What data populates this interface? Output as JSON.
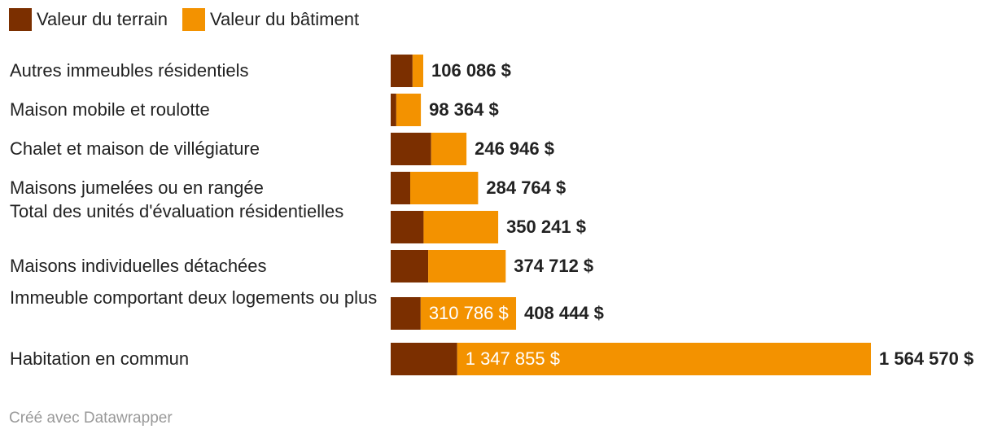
{
  "legend": [
    {
      "label": "Valeur du terrain",
      "color": "#7b2f00"
    },
    {
      "label": "Valeur du bâtiment",
      "color": "#f39200"
    }
  ],
  "chart_data": {
    "type": "bar",
    "orientation": "horizontal",
    "stacked": true,
    "categories": [
      "Autres immeubles résidentiels",
      "Maison mobile et roulotte",
      "Chalet et maison de villégiature",
      "Maisons jumelées ou en rangée",
      "Total des unités d'évaluation résidentielles",
      "Maisons individuelles détachées",
      "Immeuble comportant deux logements ou plus",
      "Habitation en commun"
    ],
    "series": [
      {
        "name": "Valeur du terrain",
        "color": "#7b2f00",
        "values": [
          71200,
          18200,
          131800,
          63700,
          107200,
          122200,
          97658,
          216715
        ]
      },
      {
        "name": "Valeur du bâtiment",
        "color": "#f39200",
        "values": [
          34886,
          80164,
          115146,
          221064,
          243041,
          252512,
          310786,
          1347855
        ]
      }
    ],
    "totals": [
      106086,
      98364,
      246946,
      284764,
      350241,
      374712,
      408444,
      1564570
    ],
    "total_labels": [
      "106 086 $",
      "98 364 $",
      "246 946 $",
      "284 764 $",
      "350 241 $",
      "374 712 $",
      "408 444 $",
      "1 564 570 $"
    ],
    "inside_labels": [
      "",
      "",
      "",
      "",
      "",
      "",
      "310 786 $",
      "1 347 855 $"
    ],
    "xlim": [
      0,
      1564570
    ],
    "grid": false,
    "legend_position": "top-left"
  },
  "footer": "Créé avec Datawrapper"
}
